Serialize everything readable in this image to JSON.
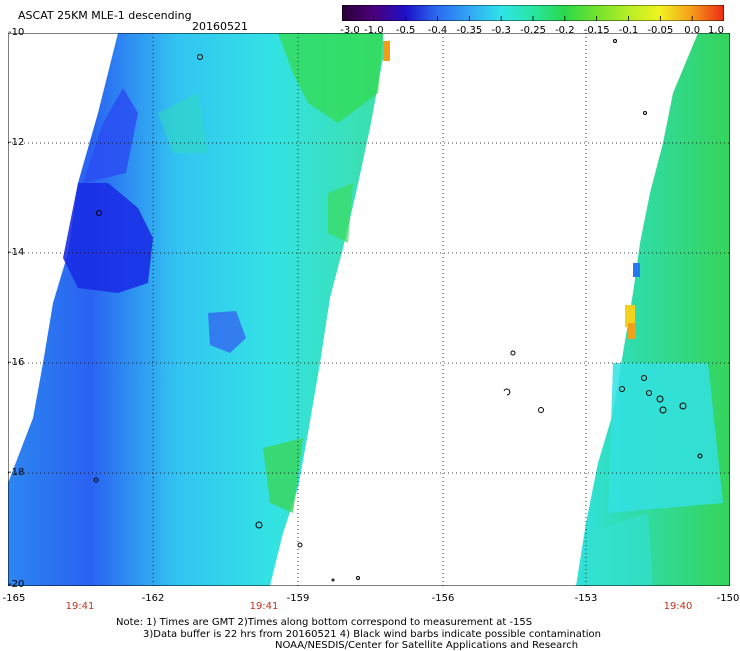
{
  "title": "ASCAT 25KM MLE-1 descending",
  "date": "20160521",
  "colorbar": {
    "colors": [
      "#2a0036",
      "#4b007a",
      "#1d10c8",
      "#2a6cf0",
      "#33a6f5",
      "#30e3e8",
      "#28e6a4",
      "#2bd84a",
      "#72e22e",
      "#b6ee26",
      "#f1f21f",
      "#f59a1a",
      "#ec2a14"
    ],
    "labels": [
      "-3.0",
      "-1.0",
      "-0.5",
      "-0.4",
      "-0.35",
      "-0.3",
      "-0.25",
      "-0.2",
      "-0.15",
      "-0.1",
      "-0.05",
      "0.0",
      "1.0"
    ]
  },
  "axes": {
    "lat_labels": [
      "-10",
      "-12",
      "-14",
      "-16",
      "-18",
      "-20"
    ],
    "lon_labels": [
      "-165",
      "-162",
      "-159",
      "-156",
      "-153",
      "-150"
    ]
  },
  "time_labels": [
    "19:41",
    "19:41",
    "19:40"
  ],
  "notes": {
    "line1": "Note: 1) Times are GMT 2)Times along bottom correspond to measurement at -15S",
    "line2": "3)Data buffer is 22 hrs from 20160521 4) Black wind barbs indicate possible contamination",
    "line3": "NOAA/NESDIS/Center for Satellite Applications and Research"
  },
  "colors": {
    "grid": "#000000",
    "time_label": "#c0311a"
  }
}
